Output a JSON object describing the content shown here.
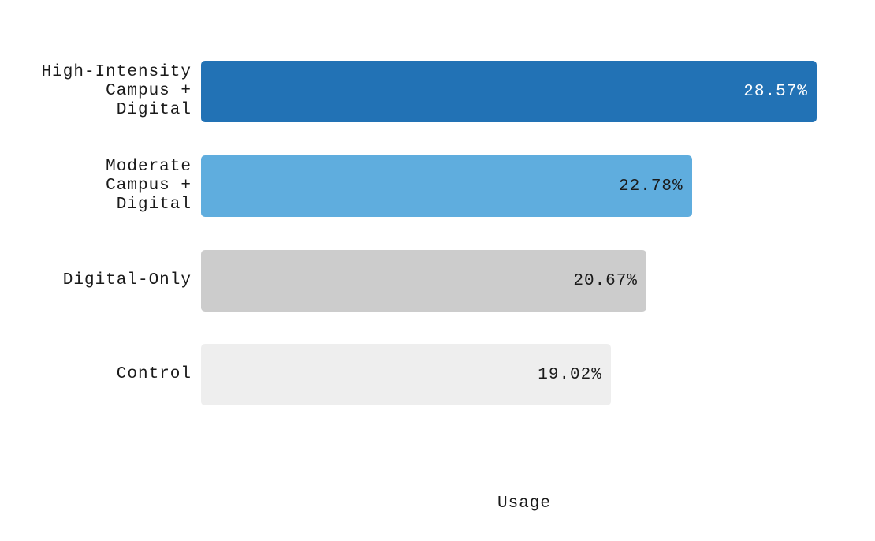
{
  "chart_data": {
    "type": "bar",
    "orientation": "horizontal",
    "title": "",
    "xlabel": "Usage",
    "ylabel": "",
    "xlim": [
      0,
      30
    ],
    "grid": false,
    "legend": false,
    "categories": [
      "High-Intensity Campus + Digital",
      "Moderate Campus + Digital",
      "Digital-Only",
      "Control"
    ],
    "values": [
      28.57,
      22.78,
      20.67,
      19.02
    ],
    "bars": [
      {
        "label": "High-Intensity\nCampus +\nDigital",
        "value": 28.57,
        "display": "28.57%",
        "color": "#2272b5",
        "value_color": "#ffffff"
      },
      {
        "label": "Moderate\nCampus +\nDigital",
        "value": 22.78,
        "display": "22.78%",
        "color": "#5fadde",
        "value_color": "#1a1a1a"
      },
      {
        "label": "Digital-Only",
        "value": 20.67,
        "display": "20.67%",
        "color": "#cccccc",
        "value_color": "#1a1a1a"
      },
      {
        "label": "Control",
        "value": 19.02,
        "display": "19.02%",
        "color": "#eeeeee",
        "value_color": "#1a1a1a"
      }
    ]
  }
}
